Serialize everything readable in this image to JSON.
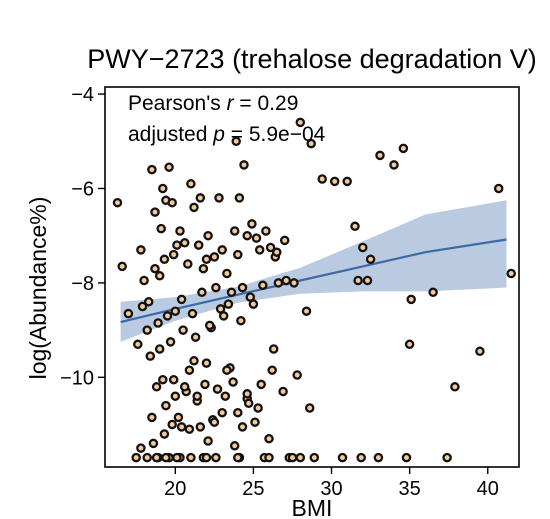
{
  "chart_data": {
    "type": "scatter",
    "title": "PWY−2723 (trehalose degradation V)",
    "xlabel": "BMI",
    "ylabel": "log(Abundance%)",
    "xlim": [
      15.5,
      42
    ],
    "ylim": [
      -11.9,
      -3.85
    ],
    "xticks": [
      20,
      25,
      30,
      35,
      40
    ],
    "yticks": [
      -4,
      -6,
      -8,
      -10
    ],
    "ytick_labels": [
      "−4",
      "−6",
      "−8",
      "−10"
    ],
    "annotations": {
      "pearson_prefix": "Pearson's ",
      "pearson_symbol": "r",
      "pearson_value": " = 0.29",
      "p_prefix": "adjusted ",
      "p_symbol": "p",
      "p_value": " = 5.9e−04"
    },
    "colors": {
      "point_fill": "#f2c99a",
      "point_edge": "#111111",
      "fit_line": "#3b6aa5",
      "confidence_band": "#9fb6d6"
    },
    "grid": false,
    "fit": {
      "x": [
        16.5,
        20,
        24,
        28,
        32,
        36,
        41.2
      ],
      "y": [
        -8.83,
        -8.55,
        -8.25,
        -7.95,
        -7.65,
        -7.35,
        -7.08
      ],
      "lower": [
        -9.25,
        -8.8,
        -8.42,
        -8.23,
        -8.18,
        -8.18,
        -8.1
      ],
      "upper": [
        -8.4,
        -8.3,
        -8.08,
        -7.68,
        -7.12,
        -6.55,
        -6.25
      ]
    },
    "points": {
      "x": [
        16.3,
        16.6,
        17.8,
        18.5,
        18.7,
        19.1,
        19.4,
        19.6,
        19.3,
        19.8,
        20.1,
        19.2,
        19.9,
        20.3,
        20.6,
        21.0,
        21.2,
        21.6,
        22.1,
        22.8,
        23.0,
        21.5,
        22.0,
        22.5,
        23.3,
        23.8,
        24.1,
        24.6,
        25.2,
        25.8,
        26.1,
        26.4,
        25.4,
        24.9,
        24.4,
        23.9,
        20.8,
        21.8,
        22.6,
        23.6,
        24.0,
        19.0,
        18.7,
        18.3,
        18.0,
        17.9,
        18.2,
        18.9,
        19.5,
        20.0,
        20.4,
        21.1,
        21.7,
        22.3,
        22.9,
        23.4,
        24.3,
        24.8,
        25.6,
        26.6,
        27.1,
        27.6,
        28.0,
        28.7,
        29.4,
        30.2,
        31.0,
        31.5,
        32.0,
        32.5,
        33.1,
        34.0,
        34.6,
        35.1,
        36.5,
        37.9,
        40.7,
        41.5,
        39.5,
        35.0,
        32.3,
        31.7,
        28.4,
        27.0,
        26.5,
        25.0,
        24.2,
        23.1,
        22.2,
        21.3,
        20.5,
        19.7,
        19.0,
        18.4,
        17.6,
        17.0,
        18.8,
        19.9,
        20.9,
        21.9,
        22.7,
        23.7,
        24.6,
        25.3,
        26.2,
        26.9,
        27.8,
        28.6,
        19.4,
        20.2,
        20.7,
        21.4,
        22.4,
        23.2,
        24.0,
        24.7,
        25.5,
        26.0,
        20.9,
        21.6,
        22.1,
        23.0,
        24.3,
        25.1,
        19.2,
        20.0,
        20.6,
        21.2,
        22.0,
        23.5,
        18.9,
        19.6,
        20.3,
        21.8,
        22.6,
        24.1,
        25.7,
        27.3,
        28.9,
        30.7,
        33.0,
        37.4,
        17.5,
        18.2,
        18.8,
        19.4,
        20.1,
        21.0,
        22.0,
        24.0,
        26.0,
        27.5,
        28.0,
        31.9,
        34.8,
        18.6,
        19.3,
        23.8,
        22.5,
        21.4,
        20.4,
        19.8,
        18.5,
        17.8,
        23.3,
        24.6,
        26.3
      ],
      "y": [
        -6.3,
        -7.65,
        -7.3,
        -5.6,
        -6.5,
        -6.85,
        -6.25,
        -5.55,
        -7.5,
        -6.3,
        -7.2,
        -6.0,
        -7.4,
        -6.9,
        -7.15,
        -5.9,
        -6.4,
        -6.2,
        -7.0,
        -6.2,
        -7.3,
        -7.2,
        -7.5,
        -7.45,
        -7.8,
        -6.9,
        -6.2,
        -7.0,
        -7.05,
        -6.9,
        -7.25,
        -7.45,
        -7.3,
        -6.75,
        -5.5,
        -5.0,
        -7.6,
        -7.7,
        -8.1,
        -8.2,
        -7.4,
        -7.85,
        -7.7,
        -8.4,
        -7.95,
        -8.5,
        -9.0,
        -8.85,
        -8.7,
        -8.6,
        -8.35,
        -8.65,
        -8.2,
        -8.95,
        -8.55,
        -8.45,
        -8.1,
        -8.3,
        -8.05,
        -8.0,
        -7.95,
        -8.0,
        -4.6,
        -5.05,
        -5.8,
        -5.85,
        -5.85,
        -6.8,
        -7.25,
        -7.5,
        -5.3,
        -5.5,
        -5.15,
        -8.35,
        -8.2,
        -10.2,
        -6.0,
        -7.8,
        -9.45,
        -9.3,
        -7.95,
        -7.95,
        -8.6,
        -7.1,
        -7.35,
        -8.45,
        -8.8,
        -8.7,
        -8.9,
        -9.15,
        -9.0,
        -9.25,
        -9.4,
        -9.55,
        -9.3,
        -8.65,
        -10.2,
        -10.05,
        -9.85,
        -10.15,
        -10.25,
        -10.1,
        -10.45,
        -10.65,
        -9.85,
        -10.3,
        -9.95,
        -10.65,
        -10.6,
        -10.85,
        -10.3,
        -10.5,
        -10.9,
        -10.4,
        -10.75,
        -10.55,
        -10.15,
        -11.3,
        -11.1,
        -11.05,
        -11.35,
        -10.75,
        -11.05,
        -10.95,
        -10.05,
        -10.4,
        -10.2,
        -9.65,
        -9.7,
        -9.8,
        -11.7,
        -11.7,
        -11.7,
        -11.7,
        -11.7,
        -11.7,
        -11.7,
        -11.7,
        -11.7,
        -11.7,
        -11.7,
        -11.7,
        -11.7,
        -11.7,
        -11.7,
        -11.7,
        -11.7,
        -11.7,
        -11.7,
        -11.7,
        -11.7,
        -11.7,
        -11.7,
        -11.7,
        -11.7,
        -11.4,
        -11.2,
        -11.45,
        -10.95,
        -10.4,
        -11.05,
        -11.0,
        -10.85,
        -11.5,
        -9.85,
        -10.35,
        -9.4
      ]
    }
  }
}
